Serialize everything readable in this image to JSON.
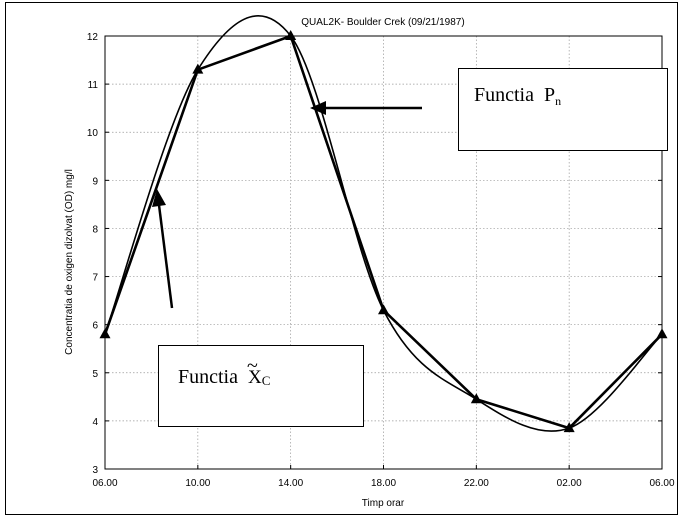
{
  "chart_data": {
    "type": "line",
    "title": "QUAL2K- Boulder Crek (09/21/1987)",
    "xlabel": "Timp orar",
    "ylabel": "Concentratia de oxigen dizolvat (OD) mg/l",
    "x_ticks": [
      "06.00",
      "10.00",
      "14.00",
      "18.00",
      "22.00",
      "02.00",
      "06.00"
    ],
    "y_ticks": [
      "3",
      "4",
      "5",
      "6",
      "7",
      "8",
      "9",
      "10",
      "11",
      "12"
    ],
    "ylim": [
      3,
      12
    ],
    "grid": true,
    "series": [
      {
        "name": "Functia P_n",
        "style": "smooth",
        "x": [
          0,
          4,
          8,
          12,
          16,
          20,
          24
        ],
        "y": [
          5.8,
          11.3,
          12.0,
          6.3,
          4.45,
          3.85,
          5.8
        ]
      },
      {
        "name": "Functia X_C",
        "style": "piecewise-linear",
        "markers": "triangle",
        "x": [
          0,
          4,
          8,
          12,
          16,
          20,
          24
        ],
        "y": [
          5.8,
          11.3,
          12.0,
          6.3,
          4.45,
          3.85,
          5.8
        ]
      }
    ],
    "annotations": [
      {
        "text": "Functia",
        "subscript_label": "P",
        "subscript": "n"
      },
      {
        "text": "Functia",
        "subscript_label": "X",
        "subscript": "C",
        "tilde": true
      }
    ]
  },
  "colors": {
    "line": "#000000",
    "grid": "#9a9a9a"
  },
  "icons": {
    "marker": "triangle-marker-icon",
    "arrow": "arrow-icon"
  }
}
